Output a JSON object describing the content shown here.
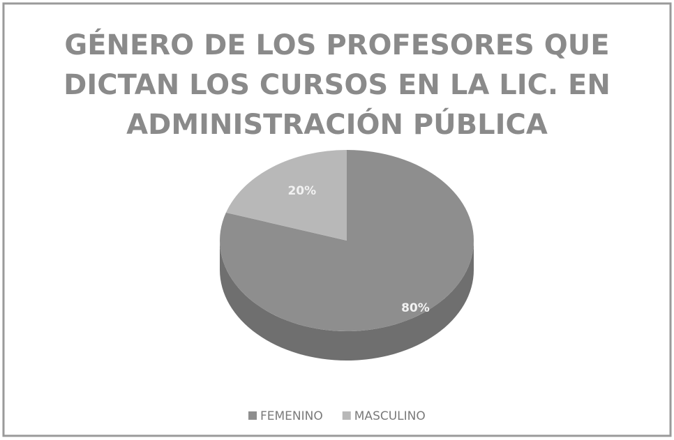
{
  "chart_data": {
    "type": "pie",
    "title": [
      "GÉNERO DE LOS PROFESORES QUE",
      "DICTAN LOS CURSOS EN LA LIC. EN",
      "ADMINISTRACIÓN PÚBLICA"
    ],
    "categories": [
      "FEMENINO",
      "MASCULINO"
    ],
    "values": [
      80,
      20
    ],
    "value_labels": [
      "80%",
      "20%"
    ],
    "colors": [
      "#8e8e8e",
      "#b8b8b8"
    ],
    "legend": "bottom"
  }
}
